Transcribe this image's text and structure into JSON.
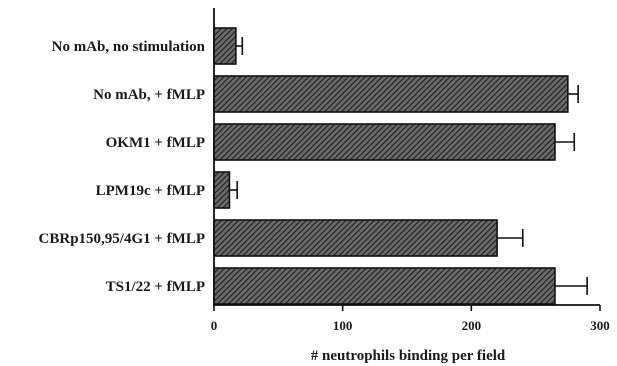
{
  "chart_data": {
    "type": "bar",
    "orientation": "horizontal",
    "categories": [
      "No mAb, no stimulation",
      "No mAb, + fMLP",
      "OKM1 + fMLP",
      "LPM19c + fMLP",
      "CBRp150,95/4G1 + fMLP",
      "TS1/22 + fMLP"
    ],
    "values": [
      17,
      275,
      265,
      12,
      220,
      265
    ],
    "errors": [
      5,
      8,
      15,
      6,
      20,
      25
    ],
    "title": "",
    "xlabel": "# neutrophils binding per field",
    "ylabel": "",
    "xlim": [
      0,
      300
    ],
    "xticks": [
      0,
      100,
      200,
      300
    ],
    "xtick_labels": [
      "0",
      "100",
      "200",
      "300"
    ],
    "grid": false,
    "legend": "none",
    "bar_pattern": "diagonal-hatch",
    "colors": {
      "bar_fill": "#555555",
      "hatch": "#1e1e1e",
      "axis": "#111111"
    }
  }
}
